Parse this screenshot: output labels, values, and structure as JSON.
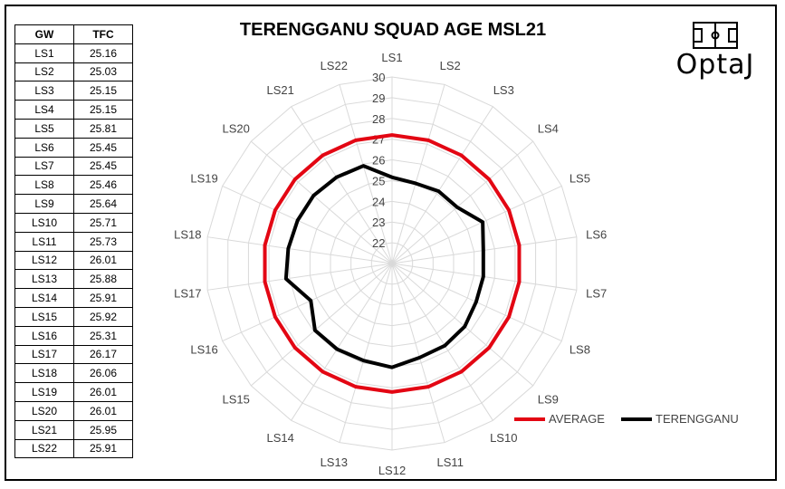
{
  "title": "TERENGGANU SQUAD AGE MSL21",
  "logo": {
    "text": "OptaJ",
    "icon": "football-pitch-icon"
  },
  "table": {
    "headers": [
      "GW",
      "TFC"
    ],
    "rows": [
      [
        "LS1",
        "25.16"
      ],
      [
        "LS2",
        "25.03"
      ],
      [
        "LS3",
        "25.15"
      ],
      [
        "LS4",
        "25.15"
      ],
      [
        "LS5",
        "25.81"
      ],
      [
        "LS6",
        "25.45"
      ],
      [
        "LS7",
        "25.45"
      ],
      [
        "LS8",
        "25.46"
      ],
      [
        "LS9",
        "25.64"
      ],
      [
        "LS10",
        "25.71"
      ],
      [
        "LS11",
        "25.73"
      ],
      [
        "LS12",
        "26.01"
      ],
      [
        "LS13",
        "25.88"
      ],
      [
        "LS14",
        "25.91"
      ],
      [
        "LS15",
        "25.92"
      ],
      [
        "LS16",
        "25.31"
      ],
      [
        "LS17",
        "26.17"
      ],
      [
        "LS18",
        "26.06"
      ],
      [
        "LS19",
        "26.01"
      ],
      [
        "LS20",
        "26.01"
      ],
      [
        "LS21",
        "25.95"
      ],
      [
        "LS22",
        "25.91"
      ]
    ]
  },
  "chart_data": {
    "type": "radar",
    "title": "TERENGGANU SQUAD AGE MSL21",
    "categories": [
      "LS1",
      "LS2",
      "LS3",
      "LS4",
      "LS5",
      "LS6",
      "LS7",
      "LS8",
      "LS9",
      "LS10",
      "LS11",
      "LS12",
      "LS13",
      "LS14",
      "LS15",
      "LS16",
      "LS17",
      "LS18",
      "LS19",
      "LS20",
      "LS21",
      "LS22"
    ],
    "rlim": [
      21,
      30
    ],
    "ticks": [
      "22",
      "23",
      "24",
      "25",
      "26",
      "27",
      "28",
      "29",
      "30"
    ],
    "legend_position": "bottom-right",
    "series": [
      {
        "name": "AVERAGE",
        "color": "#e30613",
        "values": [
          27.2,
          27.2,
          27.2,
          27.2,
          27.2,
          27.2,
          27.2,
          27.2,
          27.2,
          27.2,
          27.2,
          27.2,
          27.2,
          27.2,
          27.2,
          27.2,
          27.2,
          27.2,
          27.2,
          27.2,
          27.2,
          27.2
        ]
      },
      {
        "name": "TERENGGANU",
        "color": "#000000",
        "values": [
          25.16,
          25.03,
          25.15,
          25.15,
          25.81,
          25.45,
          25.45,
          25.46,
          25.64,
          25.71,
          25.73,
          26.01,
          25.88,
          25.91,
          25.92,
          25.31,
          26.17,
          26.06,
          26.01,
          26.01,
          25.95,
          25.91
        ]
      }
    ]
  }
}
